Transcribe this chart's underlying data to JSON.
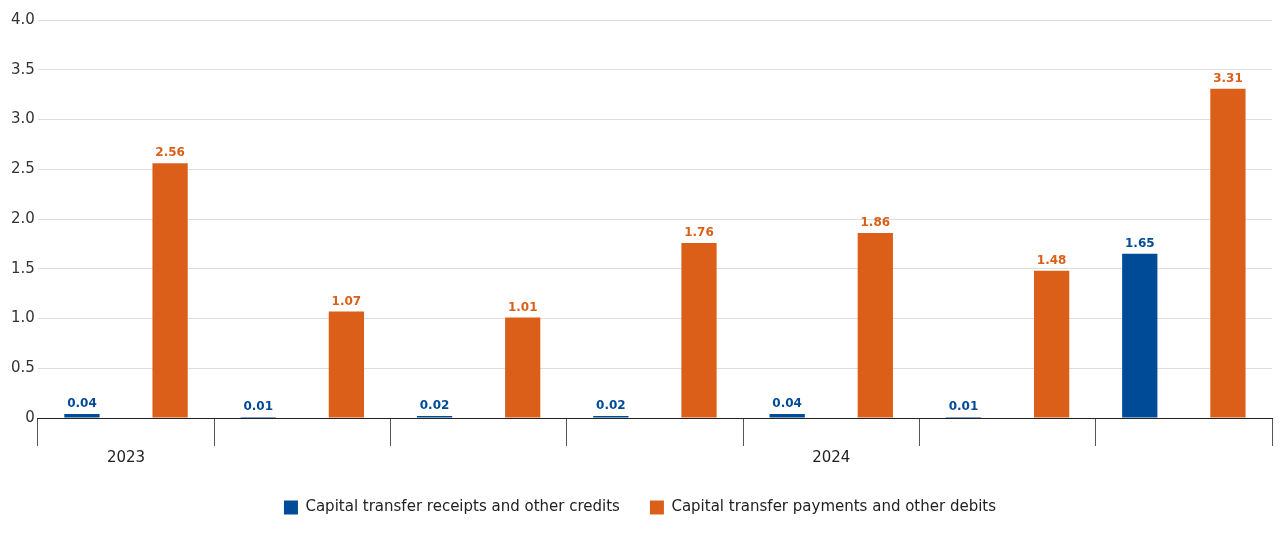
{
  "chart_data": {
    "type": "bar",
    "categories": [
      "2023",
      null,
      null,
      null,
      "2024",
      null,
      null
    ],
    "series": [
      {
        "name": "Capital transfer receipts and other credits",
        "color": "#004b98",
        "values": [
          0.04,
          0.01,
          0.02,
          0.02,
          0.04,
          0.01,
          1.65
        ]
      },
      {
        "name": "Capital transfer payments and other debits",
        "color": "#dc5f19",
        "values": [
          2.56,
          1.07,
          1.01,
          1.76,
          1.86,
          1.48,
          3.31
        ]
      }
    ],
    "ylim": [
      0,
      4
    ],
    "yticks": [
      0,
      {
        "value": 0.5,
        "label": "0.5"
      },
      {
        "value": 1,
        "label": "1.0"
      },
      {
        "value": 1.5,
        "label": "1.5"
      },
      {
        "value": 2,
        "label": "2.0"
      },
      {
        "value": 2.5,
        "label": "2.5"
      },
      {
        "value": 3,
        "label": "3.0"
      },
      {
        "value": 3.5,
        "label": "3.5"
      },
      {
        "value": 4,
        "label": "4.0"
      }
    ],
    "grid": "y",
    "legend": "bottom",
    "data_labels": true
  }
}
